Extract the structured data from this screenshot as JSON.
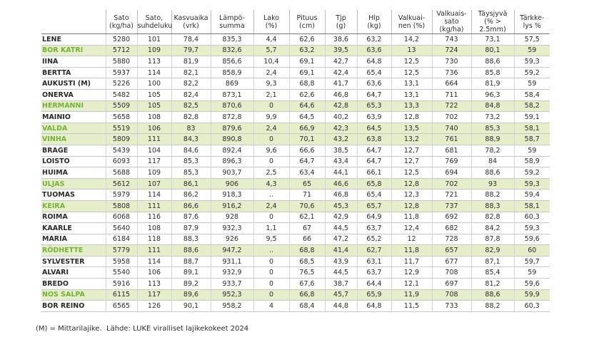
{
  "table": {
    "header": [
      [
        "Sato",
        "(kg/ha)"
      ],
      [
        "Sato,",
        "suhdeluku"
      ],
      [
        "Kasvuaika",
        "(vrk)"
      ],
      [
        "Lämpö-",
        "summa"
      ],
      [
        "Lako",
        "(%)"
      ],
      [
        "Pituus",
        "(cm)"
      ],
      [
        "Tjp",
        "(g)"
      ],
      [
        "Hlp",
        "(kg)"
      ],
      [
        "Valkuai-",
        "nen (%)"
      ],
      [
        "Valkuais-",
        "sato (kg/ha)"
      ],
      [
        "Täysjyvä",
        "(% > 2.5mm)"
      ],
      [
        "Tärkke-",
        "lys %"
      ]
    ],
    "rows": [
      [
        "LENE",
        "5280",
        "101",
        "78,4",
        "835,3",
        "4,4",
        "62,6",
        "38,6",
        "63,2",
        "14,2",
        "743",
        "73,1",
        "57,5"
      ],
      [
        "BOR KATRI",
        "5712",
        "109",
        "79,7",
        "832,6",
        "5,7",
        "63,2",
        "39,5",
        "63,6",
        "13",
        "724",
        "80,1",
        "59"
      ],
      [
        "IINA",
        "5880",
        "113",
        "81,9",
        "856,6",
        "10,4",
        "69,1",
        "42,7",
        "64,8",
        "12,5",
        "730",
        "88,6",
        "59,3"
      ],
      [
        "BERTTA",
        "5937",
        "114",
        "82,1",
        "858,9",
        "2,4",
        "69,1",
        "42,4",
        "65,4",
        "12,5",
        "736",
        "85,8",
        "59,2"
      ],
      [
        "AUKUSTI (M)",
        "5226",
        "100",
        "82,2",
        "869",
        "9,3",
        "68,8",
        "41,7",
        "63,6",
        "13,1",
        "664",
        "81,9",
        "59"
      ],
      [
        "ONERVA",
        "5482",
        "105",
        "82,4",
        "873,1",
        "2,1",
        "62,6",
        "46,8",
        "64,7",
        "13,1",
        "711",
        "96,3",
        "58,4"
      ],
      [
        "HERMANNI",
        "5509",
        "105",
        "82,5",
        "870,6",
        "0",
        "64,6",
        "42,8",
        "65,3",
        "13,3",
        "722",
        "84,8",
        "58,2"
      ],
      [
        "MAINIO",
        "5658",
        "108",
        "82,8",
        "872,8",
        "9,9",
        "64,5",
        "40,2",
        "63,9",
        "12,8",
        "702",
        "73,2",
        "59,1"
      ],
      [
        "VALDA",
        "5519",
        "106",
        "83",
        "879,6",
        "2,4",
        "66,9",
        "42,3",
        "64,5",
        "13,5",
        "740",
        "85,3",
        "58,1"
      ],
      [
        "VINHA",
        "5809",
        "111",
        "84,3",
        "890,8",
        "0",
        "70,1",
        "43,2",
        "63,8",
        "13,2",
        "761",
        "88,9",
        "58,7"
      ],
      [
        "BRAGE",
        "5439",
        "104",
        "84,6",
        "892,4",
        "9,6",
        "66,6",
        "38,5",
        "64,7",
        "12,7",
        "681",
        "78,2",
        "59"
      ],
      [
        "LOISTO",
        "6093",
        "117",
        "85,3",
        "896,3",
        "0",
        "64,7",
        "43,4",
        "64,7",
        "12,7",
        "769",
        "84",
        "58,9"
      ],
      [
        "HUIMA",
        "5688",
        "109",
        "85,3",
        "903,7",
        "2,5",
        "63,4",
        "44,1",
        "66,1",
        "12,5",
        "694",
        "88,6",
        "59,2"
      ],
      [
        "ULJAS",
        "5612",
        "107",
        "86,1",
        "906",
        "4,3",
        "65",
        "46,6",
        "65,8",
        "12,8",
        "702",
        "93",
        "59,3"
      ],
      [
        "TUOMAS",
        "5979",
        "114",
        "86,2",
        "918,3",
        "..",
        "71",
        "46,8",
        "65,4",
        "12,3",
        "721",
        "88,2",
        "59,4"
      ],
      [
        "KEIRA",
        "5808",
        "111",
        "86,6",
        "916,2",
        "2,4",
        "70,6",
        "45,3",
        "65,7",
        "12,8",
        "737",
        "88,3",
        "58,1"
      ],
      [
        "ROIMA",
        "6068",
        "116",
        "87,6",
        "928",
        "0",
        "62,1",
        "42,9",
        "64,9",
        "11,8",
        "692",
        "82,8",
        "60,3"
      ],
      [
        "KAARLE",
        "5640",
        "108",
        "87,9",
        "932,3",
        "1,1",
        "67",
        "44,5",
        "63,7",
        "12,4",
        "682",
        "84,2",
        "59,3"
      ],
      [
        "MARIA",
        "6184",
        "118",
        "88,3",
        "926",
        "9,5",
        "66",
        "47,2",
        "65,2",
        "12",
        "728",
        "87,8",
        "59,6"
      ],
      [
        "RÖDHETTE",
        "5779",
        "111",
        "88,6",
        "947,2",
        "..",
        "68,8",
        "41,4",
        "62,7",
        "11,8",
        "657",
        "82,9",
        "60"
      ],
      [
        "SYLVESTER",
        "5958",
        "114",
        "88,7",
        "931,1",
        "0",
        "68,5",
        "43,9",
        "63,1",
        "11,7",
        "677",
        "87,1",
        "59,7"
      ],
      [
        "ALVARI",
        "5540",
        "106",
        "89,1",
        "932,9",
        "0",
        "76,5",
        "44,5",
        "63,7",
        "12,9",
        "708",
        "85,4",
        "59"
      ],
      [
        "BREDO",
        "5916",
        "113",
        "89,2",
        "933,7",
        "0",
        "67,6",
        "38,7",
        "64,4",
        "12,1",
        "697",
        "81,2",
        "59,6"
      ],
      [
        "NOS SALPA",
        "6115",
        "117",
        "89,6",
        "952,3",
        "0",
        "66,8",
        "45,7",
        "65,9",
        "11,9",
        "708",
        "88,6",
        "59,9"
      ],
      [
        "BOR REINO",
        "6565",
        "126",
        "90,1",
        "958,2",
        "4",
        "68,4",
        "44,8",
        "64,8",
        "11,5",
        "733",
        "88,2",
        "60,3"
      ]
    ],
    "highlight": [
      false,
      true,
      false,
      false,
      false,
      false,
      true,
      false,
      true,
      true,
      false,
      false,
      false,
      true,
      false,
      true,
      false,
      false,
      false,
      true,
      false,
      false,
      false,
      true,
      false
    ]
  },
  "footnote": "(M) = Mittarilajike.  Lähde: LUKE viralliset lajikekokeet 2024"
}
